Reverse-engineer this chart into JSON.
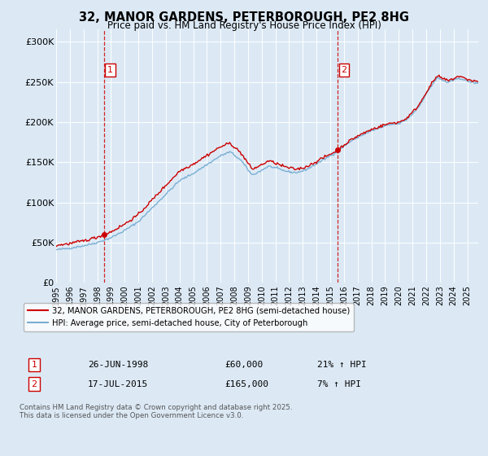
{
  "title": "32, MANOR GARDENS, PETERBOROUGH, PE2 8HG",
  "subtitle": "Price paid vs. HM Land Registry's House Price Index (HPI)",
  "background_color": "#dce9f5",
  "plot_bg_color": "#dce9f5",
  "yticks_labels": [
    "£0",
    "£50K",
    "£100K",
    "£150K",
    "£200K",
    "£250K",
    "£300K"
  ],
  "yticks_values": [
    0,
    50000,
    100000,
    150000,
    200000,
    250000,
    300000
  ],
  "ylim": [
    0,
    315000
  ],
  "xlim_start": 1995.0,
  "xlim_end": 2025.8,
  "sale1_x": 1998.49,
  "sale1_y": 60000,
  "sale1_label": "1",
  "sale1_date": "26-JUN-1998",
  "sale1_price": "£60,000",
  "sale1_hpi": "21% ↑ HPI",
  "sale2_x": 2015.54,
  "sale2_y": 165000,
  "sale2_label": "2",
  "sale2_date": "17-JUL-2015",
  "sale2_price": "£165,000",
  "sale2_hpi": "7% ↑ HPI",
  "legend_label_red": "32, MANOR GARDENS, PETERBOROUGH, PE2 8HG (semi-detached house)",
  "legend_label_blue": "HPI: Average price, semi-detached house, City of Peterborough",
  "footer_text": "Contains HM Land Registry data © Crown copyright and database right 2025.\nThis data is licensed under the Open Government Licence v3.0.",
  "red_color": "#cc0000",
  "blue_color": "#7aafd4",
  "grid_color": "#ffffff"
}
